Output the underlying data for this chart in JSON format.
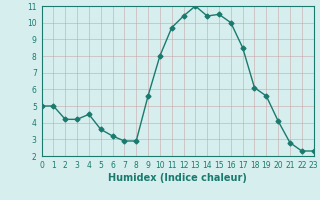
{
  "x": [
    0,
    1,
    2,
    3,
    4,
    5,
    6,
    7,
    8,
    9,
    10,
    11,
    12,
    13,
    14,
    15,
    16,
    17,
    18,
    19,
    20,
    21,
    22,
    23
  ],
  "y": [
    5.0,
    5.0,
    4.2,
    4.2,
    4.5,
    3.6,
    3.2,
    2.9,
    2.9,
    5.6,
    8.0,
    9.7,
    10.4,
    11.0,
    10.4,
    10.5,
    10.0,
    8.5,
    6.1,
    5.6,
    4.1,
    2.8,
    2.3,
    2.3
  ],
  "xlabel": "Humidex (Indice chaleur)",
  "xlim": [
    0,
    23
  ],
  "ylim": [
    2,
    11
  ],
  "yticks": [
    2,
    3,
    4,
    5,
    6,
    7,
    8,
    9,
    10,
    11
  ],
  "xticks": [
    0,
    1,
    2,
    3,
    4,
    5,
    6,
    7,
    8,
    9,
    10,
    11,
    12,
    13,
    14,
    15,
    16,
    17,
    18,
    19,
    20,
    21,
    22,
    23
  ],
  "line_color": "#1a7a6e",
  "marker": "D",
  "marker_size": 2.5,
  "bg_color": "#d6eeee",
  "grid_color": "#b8d8d8",
  "tick_label_fontsize": 5.5,
  "xlabel_fontsize": 7.0
}
